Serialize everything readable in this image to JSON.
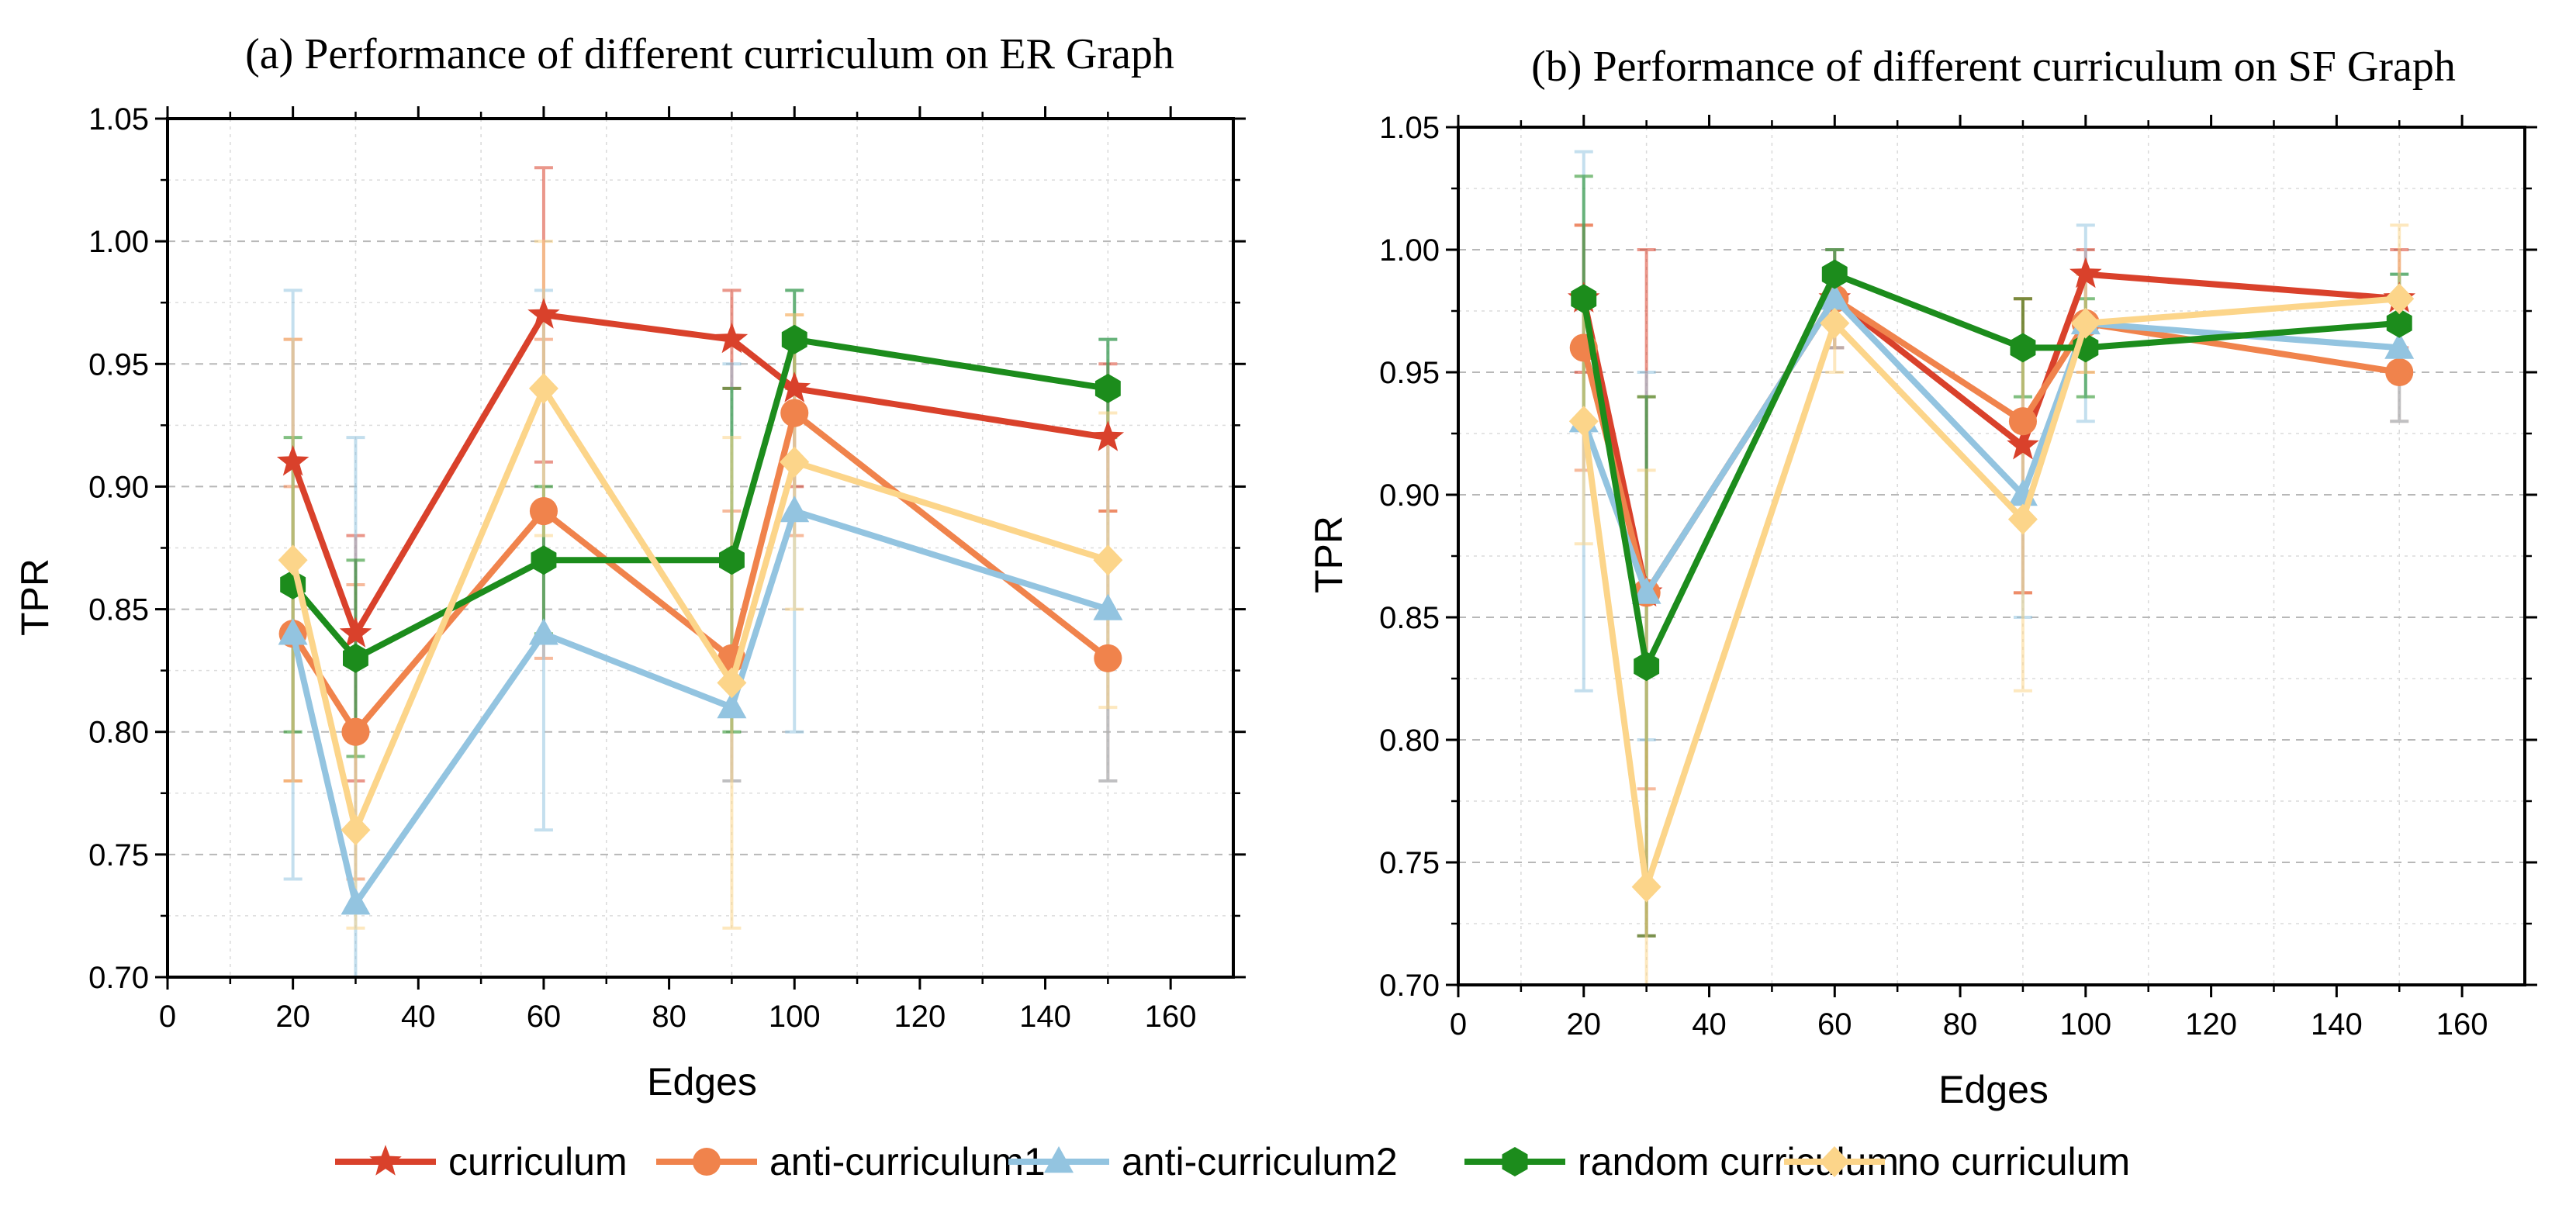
{
  "figure": {
    "legend": [
      {
        "name": "curriculum",
        "color": "#D9412B",
        "marker": "star"
      },
      {
        "name": "anti-curriculum1",
        "color": "#F0834C",
        "marker": "circle"
      },
      {
        "name": "anti-curriculum2",
        "color": "#93C4E0",
        "marker": "triangle"
      },
      {
        "name": "random curriculum",
        "color": "#1C8C1C",
        "marker": "hexagon"
      },
      {
        "name": "no curriculum",
        "color": "#FCD58A",
        "marker": "diamond"
      }
    ]
  },
  "chart_data": [
    {
      "type": "line",
      "title": "(a) Performance of different curriculum on ER Graph",
      "xlabel": "Edges",
      "ylabel": "TPR",
      "xlim": [
        0,
        170
      ],
      "ylim": [
        0.7,
        1.05
      ],
      "xticks": [
        "0",
        "20",
        "40",
        "60",
        "80",
        "100",
        "120",
        "140",
        "160"
      ],
      "yticks": [
        "0.70",
        "0.75",
        "0.80",
        "0.85",
        "0.90",
        "0.95",
        "1.00",
        "1.05"
      ],
      "grid": true,
      "x": [
        20,
        30,
        60,
        90,
        100,
        150
      ],
      "series": [
        {
          "name": "curriculum",
          "values": [
            0.91,
            0.84,
            0.97,
            0.96,
            0.94,
            0.92
          ],
          "err_low": [
            0.78,
            0.78,
            0.91,
            0.94,
            0.9,
            0.89
          ],
          "err_high": [
            0.96,
            0.88,
            1.03,
            0.98,
            0.96,
            0.95
          ]
        },
        {
          "name": "anti-curriculum1",
          "values": [
            0.84,
            0.8,
            0.89,
            0.83,
            0.93,
            0.83
          ],
          "err_low": [
            0.78,
            0.74,
            0.83,
            0.78,
            0.88,
            0.78
          ],
          "err_high": [
            0.9,
            0.86,
            0.96,
            0.89,
            0.97,
            0.89
          ]
        },
        {
          "name": "anti-curriculum2",
          "values": [
            0.84,
            0.73,
            0.84,
            0.81,
            0.89,
            0.85
          ],
          "err_low": [
            0.74,
            0.7,
            0.76,
            0.78,
            0.8,
            0.78
          ],
          "err_high": [
            0.98,
            0.92,
            0.98,
            0.95,
            0.98,
            0.96
          ]
        },
        {
          "name": "random curriculum",
          "values": [
            0.86,
            0.83,
            0.87,
            0.87,
            0.96,
            0.94
          ],
          "err_low": [
            0.8,
            0.79,
            0.84,
            0.8,
            0.94,
            0.92
          ],
          "err_high": [
            0.92,
            0.87,
            0.9,
            0.94,
            0.98,
            0.96
          ]
        },
        {
          "name": "no curriculum",
          "values": [
            0.87,
            0.76,
            0.94,
            0.82,
            0.91,
            0.87
          ],
          "err_low": [
            0.78,
            0.72,
            0.88,
            0.72,
            0.85,
            0.81
          ],
          "err_high": [
            0.96,
            0.8,
            1.0,
            0.92,
            0.97,
            0.93
          ]
        }
      ]
    },
    {
      "type": "line",
      "title": "(b) Performance of different curriculum on SF Graph",
      "xlabel": "Edges",
      "ylabel": "TPR",
      "xlim": [
        0,
        170
      ],
      "ylim": [
        0.7,
        1.05
      ],
      "xticks": [
        "0",
        "20",
        "40",
        "60",
        "80",
        "100",
        "120",
        "140",
        "160"
      ],
      "yticks": [
        "0.70",
        "0.75",
        "0.80",
        "0.85",
        "0.90",
        "0.95",
        "1.00",
        "1.05"
      ],
      "grid": true,
      "x": [
        20,
        30,
        60,
        90,
        100,
        150
      ],
      "series": [
        {
          "name": "curriculum",
          "values": [
            0.98,
            0.86,
            0.98,
            0.92,
            0.99,
            0.98
          ],
          "err_low": [
            0.95,
            0.72,
            0.96,
            0.86,
            0.97,
            0.96
          ],
          "err_high": [
            1.01,
            1.0,
            1.0,
            0.98,
            1.0,
            1.0
          ]
        },
        {
          "name": "anti-curriculum1",
          "values": [
            0.96,
            0.86,
            0.98,
            0.93,
            0.97,
            0.95
          ],
          "err_low": [
            0.91,
            0.78,
            0.96,
            0.86,
            0.95,
            0.93
          ],
          "err_high": [
            1.01,
            0.94,
            1.0,
            0.98,
            0.99,
            0.97
          ]
        },
        {
          "name": "anti-curriculum2",
          "values": [
            0.93,
            0.86,
            0.98,
            0.9,
            0.97,
            0.96
          ],
          "err_low": [
            0.82,
            0.8,
            0.96,
            0.85,
            0.93,
            0.93
          ],
          "err_high": [
            1.04,
            0.95,
            1.0,
            0.96,
            1.01,
            0.99
          ]
        },
        {
          "name": "random curriculum",
          "values": [
            0.98,
            0.83,
            0.99,
            0.96,
            0.96,
            0.97
          ],
          "err_low": [
            0.93,
            0.72,
            0.98,
            0.94,
            0.94,
            0.95
          ],
          "err_high": [
            1.03,
            0.94,
            1.0,
            0.98,
            0.98,
            0.99
          ]
        },
        {
          "name": "no curriculum",
          "values": [
            0.93,
            0.74,
            0.97,
            0.89,
            0.97,
            0.98
          ],
          "err_low": [
            0.88,
            0.7,
            0.95,
            0.82,
            0.95,
            0.95
          ],
          "err_high": [
            0.98,
            0.91,
            0.99,
            0.96,
            0.99,
            1.01
          ]
        }
      ]
    }
  ]
}
